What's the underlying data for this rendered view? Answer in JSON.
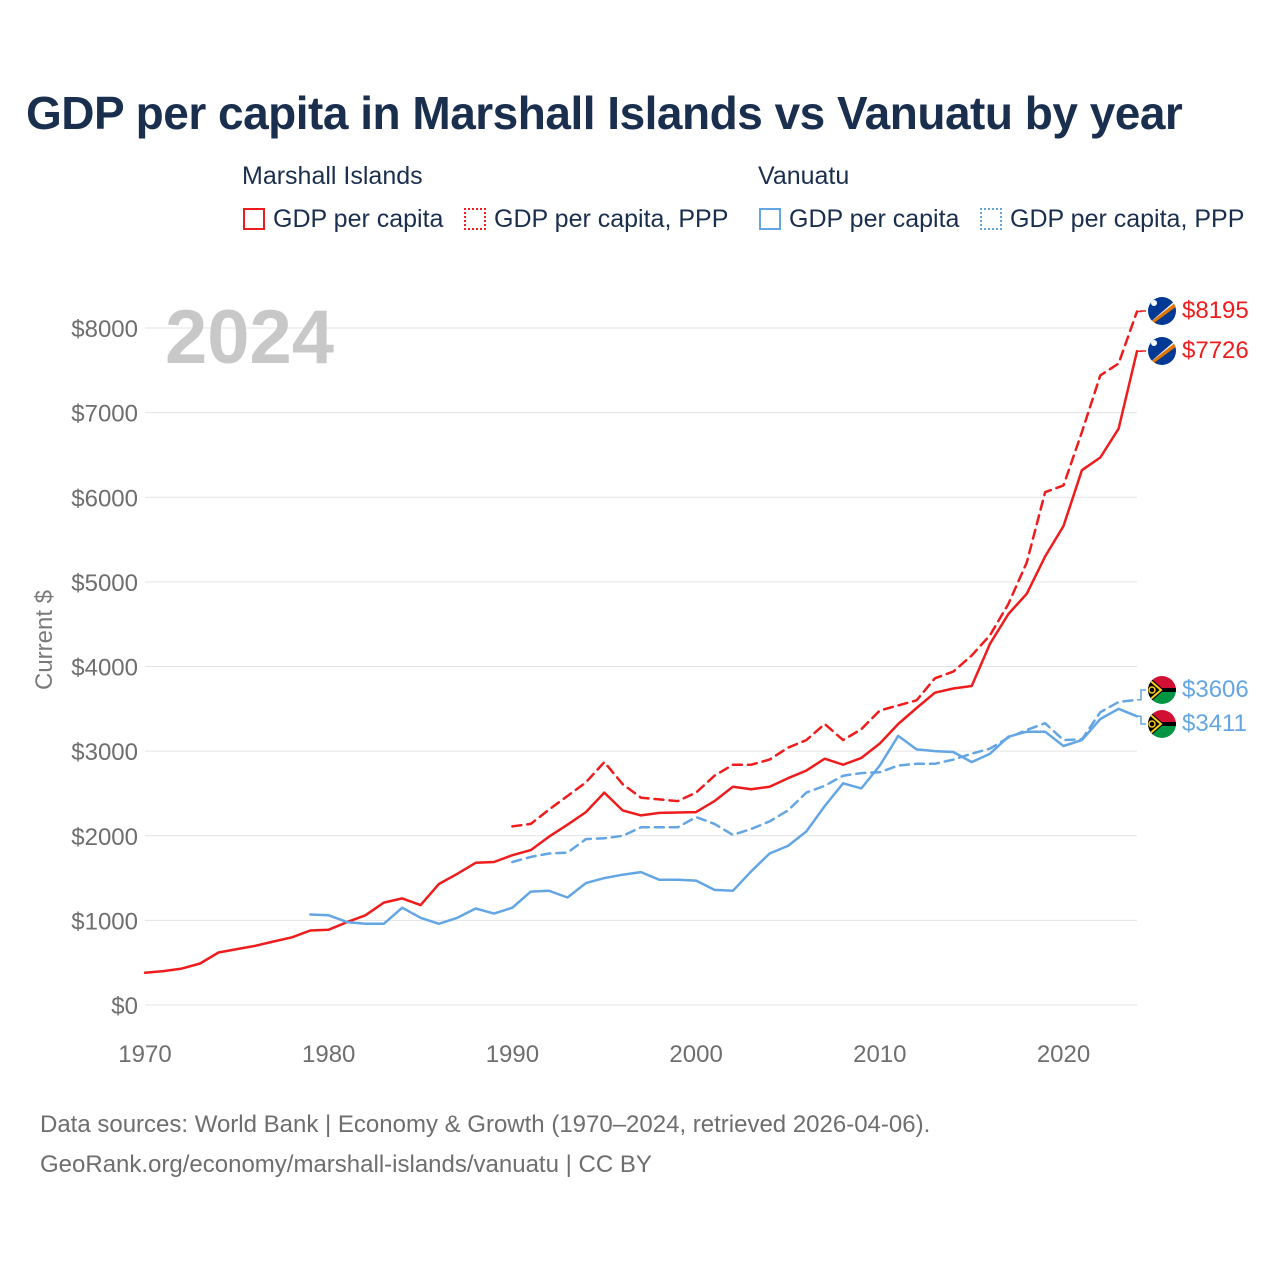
{
  "chart_data": {
    "type": "line",
    "title": "GDP per capita in Marshall Islands vs Vanuatu by year",
    "ylabel": "Current $",
    "xlabel": "",
    "year_label": "2024",
    "xlim": [
      1970,
      2024
    ],
    "ylim": [
      0,
      8200
    ],
    "x_ticks": [
      1970,
      1980,
      1990,
      2000,
      2010,
      2020
    ],
    "y_ticks": [
      0,
      1000,
      2000,
      3000,
      4000,
      5000,
      6000,
      7000,
      8000
    ],
    "y_tick_labels": [
      "$0",
      "$1000",
      "$2000",
      "$3000",
      "$4000",
      "$5000",
      "$6000",
      "$7000",
      "$8000"
    ],
    "grid": true,
    "colors": {
      "marshall": "#ee1c1c",
      "vanuatu": "#64a6e4"
    },
    "legend": {
      "groups": [
        {
          "name": "Marshall Islands",
          "items": [
            "GDP per capita",
            "GDP per capita, PPP"
          ]
        },
        {
          "name": "Vanuatu",
          "items": [
            "GDP per capita",
            "GDP per capita, PPP"
          ]
        }
      ]
    },
    "series": [
      {
        "name": "Marshall Islands GDP per capita",
        "country": "Marshall Islands",
        "style": "solid",
        "color": "#ee1c1c",
        "end_label": "$7726",
        "flag": "marshall-islands-flag-icon",
        "x": [
          1970,
          1971,
          1972,
          1973,
          1974,
          1975,
          1976,
          1977,
          1978,
          1979,
          1980,
          1981,
          1982,
          1983,
          1984,
          1985,
          1986,
          1987,
          1988,
          1989,
          1990,
          1991,
          1992,
          1993,
          1994,
          1995,
          1996,
          1997,
          1998,
          1999,
          2000,
          2001,
          2002,
          2003,
          2004,
          2005,
          2006,
          2007,
          2008,
          2009,
          2010,
          2011,
          2012,
          2013,
          2014,
          2015,
          2016,
          2017,
          2018,
          2019,
          2020,
          2021,
          2022,
          2023,
          2024
        ],
        "values": [
          380,
          400,
          430,
          490,
          620,
          660,
          700,
          750,
          800,
          880,
          890,
          980,
          1060,
          1210,
          1260,
          1180,
          1430,
          1550,
          1680,
          1690,
          1770,
          1830,
          1990,
          2130,
          2280,
          2510,
          2300,
          2240,
          2270,
          2275,
          2280,
          2410,
          2580,
          2550,
          2580,
          2680,
          2770,
          2910,
          2840,
          2920,
          3090,
          3320,
          3510,
          3690,
          3740,
          3770,
          4270,
          4620,
          4860,
          5300,
          5660,
          6320,
          6470,
          6810,
          7726
        ]
      },
      {
        "name": "Marshall Islands GDP per capita, PPP",
        "country": "Marshall Islands",
        "style": "dashed",
        "color": "#ee1c1c",
        "end_label": "$8195",
        "flag": "marshall-islands-flag-icon",
        "x": [
          1990,
          1991,
          1992,
          1993,
          1994,
          1995,
          1996,
          1997,
          1998,
          1999,
          2000,
          2001,
          2002,
          2003,
          2004,
          2005,
          2006,
          2007,
          2008,
          2009,
          2010,
          2011,
          2012,
          2013,
          2014,
          2015,
          2016,
          2017,
          2018,
          2019,
          2020,
          2021,
          2022,
          2023,
          2024
        ],
        "values": [
          2110,
          2140,
          2310,
          2470,
          2630,
          2870,
          2610,
          2450,
          2430,
          2410,
          2510,
          2710,
          2840,
          2840,
          2900,
          3040,
          3130,
          3320,
          3130,
          3260,
          3480,
          3540,
          3600,
          3860,
          3940,
          4130,
          4370,
          4740,
          5230,
          6060,
          6140,
          6770,
          7440,
          7580,
          8195
        ]
      },
      {
        "name": "Vanuatu GDP per capita",
        "country": "Vanuatu",
        "style": "solid",
        "color": "#64a6e4",
        "end_label": "$3411",
        "flag": "vanuatu-flag-icon",
        "x": [
          1979,
          1980,
          1981,
          1982,
          1983,
          1984,
          1985,
          1986,
          1987,
          1988,
          1989,
          1990,
          1991,
          1992,
          1993,
          1994,
          1995,
          1996,
          1997,
          1998,
          1999,
          2000,
          2001,
          2002,
          2003,
          2004,
          2005,
          2006,
          2007,
          2008,
          2009,
          2010,
          2011,
          2012,
          2013,
          2014,
          2015,
          2016,
          2017,
          2018,
          2019,
          2020,
          2021,
          2022,
          2023,
          2024
        ],
        "values": [
          1070,
          1060,
          980,
          960,
          960,
          1150,
          1030,
          960,
          1030,
          1140,
          1080,
          1150,
          1340,
          1350,
          1270,
          1440,
          1500,
          1540,
          1570,
          1480,
          1480,
          1470,
          1360,
          1350,
          1580,
          1790,
          1880,
          2050,
          2350,
          2620,
          2560,
          2830,
          3180,
          3020,
          3000,
          2990,
          2870,
          2970,
          3170,
          3230,
          3230,
          3060,
          3130,
          3380,
          3500,
          3411
        ]
      },
      {
        "name": "Vanuatu GDP per capita, PPP",
        "country": "Vanuatu",
        "style": "dashed",
        "color": "#64a6e4",
        "end_label": "$3606",
        "flag": "vanuatu-flag-icon",
        "x": [
          1990,
          1991,
          1992,
          1993,
          1994,
          1995,
          1996,
          1997,
          1998,
          1999,
          2000,
          2001,
          2002,
          2003,
          2004,
          2005,
          2006,
          2007,
          2008,
          2009,
          2010,
          2011,
          2012,
          2013,
          2014,
          2015,
          2016,
          2017,
          2018,
          2019,
          2020,
          2021,
          2022,
          2023,
          2024
        ],
        "values": [
          1690,
          1750,
          1790,
          1800,
          1960,
          1970,
          2000,
          2100,
          2100,
          2100,
          2220,
          2140,
          2010,
          2080,
          2170,
          2300,
          2510,
          2590,
          2710,
          2740,
          2750,
          2830,
          2850,
          2850,
          2900,
          2970,
          3030,
          3160,
          3250,
          3330,
          3130,
          3140,
          3460,
          3580,
          3606
        ]
      }
    ],
    "footer": {
      "line1": "Data sources: World Bank | Economy & Growth (1970–2024, retrieved 2026-04-06).",
      "line2": "GeoRank.org/economy/marshall-islands/vanuatu | CC BY"
    }
  }
}
